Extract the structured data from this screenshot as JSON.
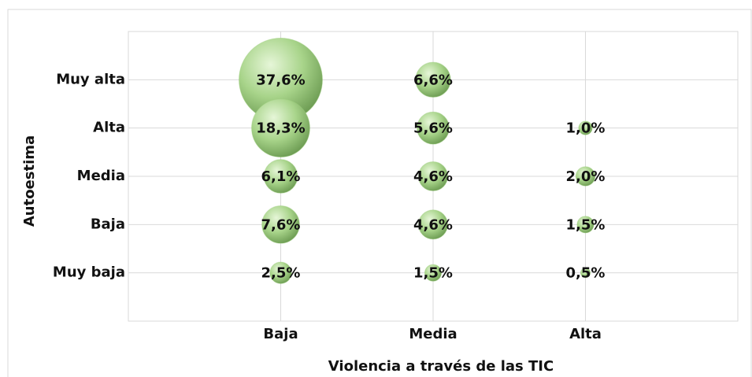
{
  "chart_data": {
    "type": "bubble",
    "x_label": "Violencia a través de las TIC",
    "y_label": "Autoestima",
    "x_categories": [
      "Baja",
      "Media",
      "Alta"
    ],
    "y_categories": [
      "Muy baja",
      "Baja",
      "Media",
      "Alta",
      "Muy alta"
    ],
    "x": [
      "Baja",
      "Baja",
      "Baja",
      "Baja",
      "Baja",
      "Media",
      "Media",
      "Media",
      "Media",
      "Media",
      "Alta",
      "Alta",
      "Alta",
      "Alta"
    ],
    "y": [
      "Muy alta",
      "Alta",
      "Media",
      "Baja",
      "Muy baja",
      "Muy alta",
      "Alta",
      "Media",
      "Baja",
      "Muy baja",
      "Alta",
      "Media",
      "Baja",
      "Muy baja"
    ],
    "values": [
      37.6,
      18.3,
      6.1,
      7.6,
      2.5,
      6.6,
      5.6,
      4.6,
      4.6,
      1.5,
      1.0,
      2.0,
      1.5,
      0.5
    ],
    "value_labels": [
      "37,6%",
      "18,3%",
      "6,1%",
      "7,6%",
      "2,5%",
      "6,6%",
      "5,6%",
      "4,6%",
      "4,6%",
      "1,5%",
      "1,0%",
      "2,0%",
      "1,5%",
      "0,5%"
    ],
    "color": "#9ccc7a",
    "grid": true
  }
}
